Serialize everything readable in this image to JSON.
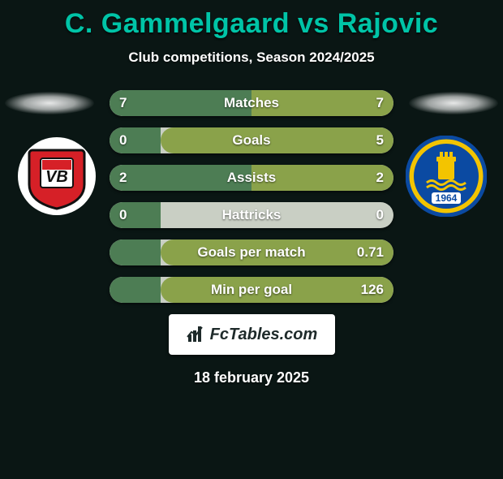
{
  "title_color": "#00c4a7",
  "title": "C. Gammelgaard vs Rajovic",
  "subtitle": "Club competitions, Season 2024/2025",
  "brand": "FcTables.com",
  "footer_date": "18 february 2025",
  "bar_track_color": "#c9cfc4",
  "left_fill_color": "#4d7d54",
  "right_fill_color": "#8aa24a",
  "text_shadow": "0 1px 2px rgba(0,0,0,0.6)",
  "team_left": {
    "primary": "#d62027",
    "secondary": "#ffffff",
    "accent": "#111111",
    "letters": "VB"
  },
  "team_right": {
    "primary": "#f3c400",
    "secondary": "#0b4aa2",
    "year": "1964"
  },
  "stats": [
    {
      "label": "Matches",
      "left_text": "7",
      "right_text": "7",
      "left_w": 50.0,
      "right_w": 50.0
    },
    {
      "label": "Goals",
      "left_text": "0",
      "right_text": "5",
      "left_w": 18.0,
      "right_w": 82.0,
      "full_right": true
    },
    {
      "label": "Assists",
      "left_text": "2",
      "right_text": "2",
      "left_w": 50.0,
      "right_w": 50.0
    },
    {
      "label": "Hattricks",
      "left_text": "0",
      "right_text": "0",
      "left_w": 18.0,
      "right_w": 0.0
    },
    {
      "label": "Goals per match",
      "left_text": "",
      "right_text": "0.71",
      "left_w": 18.0,
      "right_w": 82.0,
      "full_right": true
    },
    {
      "label": "Min per goal",
      "left_text": "",
      "right_text": "126",
      "left_w": 18.0,
      "right_w": 82.0,
      "full_right": true
    }
  ]
}
